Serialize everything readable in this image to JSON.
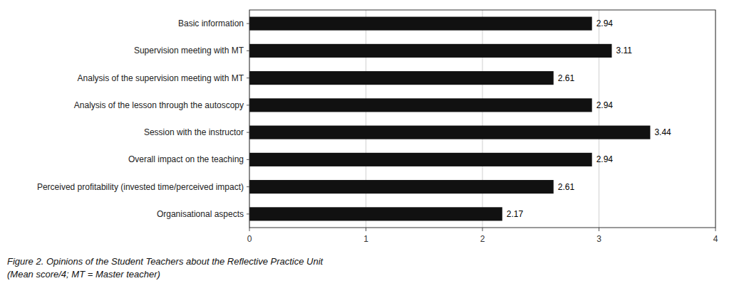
{
  "chart_data": {
    "type": "bar",
    "orientation": "horizontal",
    "title": "Figure 2. Opinions of the Student Teachers about the Reflective Practice Unit\n(Mean score/4; MT = Master teacher)",
    "categories": [
      "Organisational aspects",
      "Perceived profitability (invested time/perceived impact)",
      "Overall impact on the teaching",
      "Session with the instructor",
      "Analysis of the lesson through the autoscopy",
      "Analysis of the supervision meeting with MT",
      "Supervision meeting with MT",
      "Basic information"
    ],
    "values": [
      2.17,
      2.61,
      2.94,
      3.44,
      2.94,
      2.61,
      3.11,
      2.94
    ],
    "color": "#111111",
    "xlim": [
      0,
      4
    ],
    "xticks": [
      0,
      1,
      2,
      3,
      4
    ],
    "grid": true,
    "data_labels": true
  }
}
